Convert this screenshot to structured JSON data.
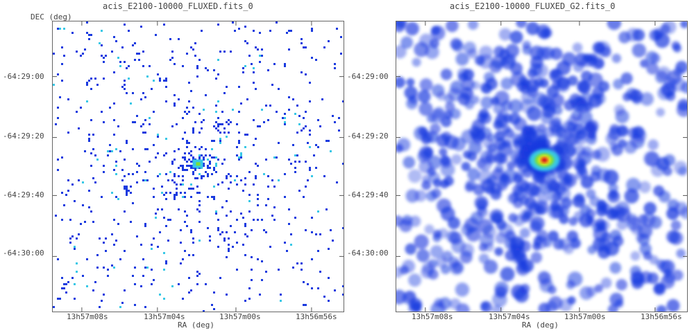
{
  "colors": {
    "low": "#1a3adf",
    "mid": "#38c8e6",
    "high_green": "#7adf3a",
    "core_yellow": "#f5e51a",
    "core_red": "#d01020",
    "frame": "#666666"
  },
  "panels": [
    {
      "title": "acis_E2100-10000_FLUXED.fits_0",
      "render": "raw-counts",
      "ylabel": "DEC (deg)",
      "xlabel": "RA (deg)",
      "yticks": [
        "-64:29:00",
        "-64:29:20",
        "-64:29:40",
        "-64:30:00"
      ],
      "xticks": [
        "13h57m08s",
        "13h57m04s",
        "13h57m00s",
        "13h56m56s"
      ]
    },
    {
      "title": "acis_E2100-10000_FLUXED_G2.fits_0",
      "render": "smoothed",
      "ylabel": "",
      "xlabel": "RA (deg)",
      "yticks": [
        "-64:29:00",
        "-64:29:20",
        "-64:29:40",
        "-64:30:00"
      ],
      "xticks": [
        "13h57m08s",
        "13h57m04s",
        "13h57m00s",
        "13h56m56s"
      ]
    }
  ]
}
